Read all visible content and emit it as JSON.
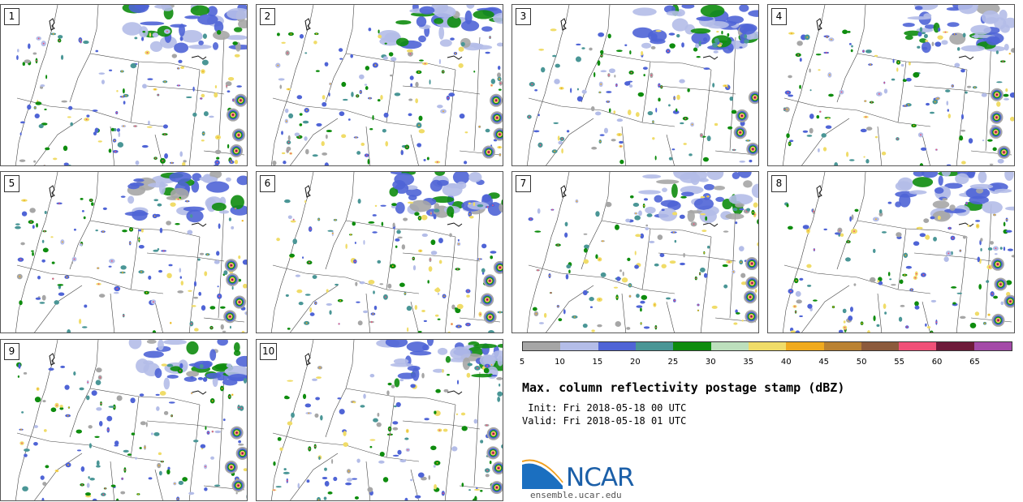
{
  "panels": [
    {
      "label": "1"
    },
    {
      "label": "2"
    },
    {
      "label": "3"
    },
    {
      "label": "4"
    },
    {
      "label": "5"
    },
    {
      "label": "6"
    },
    {
      "label": "7"
    },
    {
      "label": "8"
    },
    {
      "label": "9"
    },
    {
      "label": "10"
    }
  ],
  "colorbar": {
    "ticks": [
      "5",
      "10",
      "15",
      "20",
      "25",
      "30",
      "35",
      "40",
      "45",
      "50",
      "55",
      "60",
      "65"
    ],
    "colors": [
      "#a6a6a6",
      "#b4bde8",
      "#4f64d6",
      "#4a9696",
      "#0e8c0e",
      "#bde0bd",
      "#f0dc68",
      "#f0aa1e",
      "#ba8232",
      "#8c5a3c",
      "#f05078",
      "#6e1a3a",
      "#a44aa8"
    ]
  },
  "title": "Max. column reflectivity postage stamp (dBZ)",
  "init": " Init: Fri 2018-05-18 00 UTC",
  "valid": "Valid: Fri 2018-05-18 01 UTC",
  "logo": {
    "text": "NCAR",
    "brand_color": "#1b5fa8"
  },
  "site": "ensemble.ucar.edu"
}
